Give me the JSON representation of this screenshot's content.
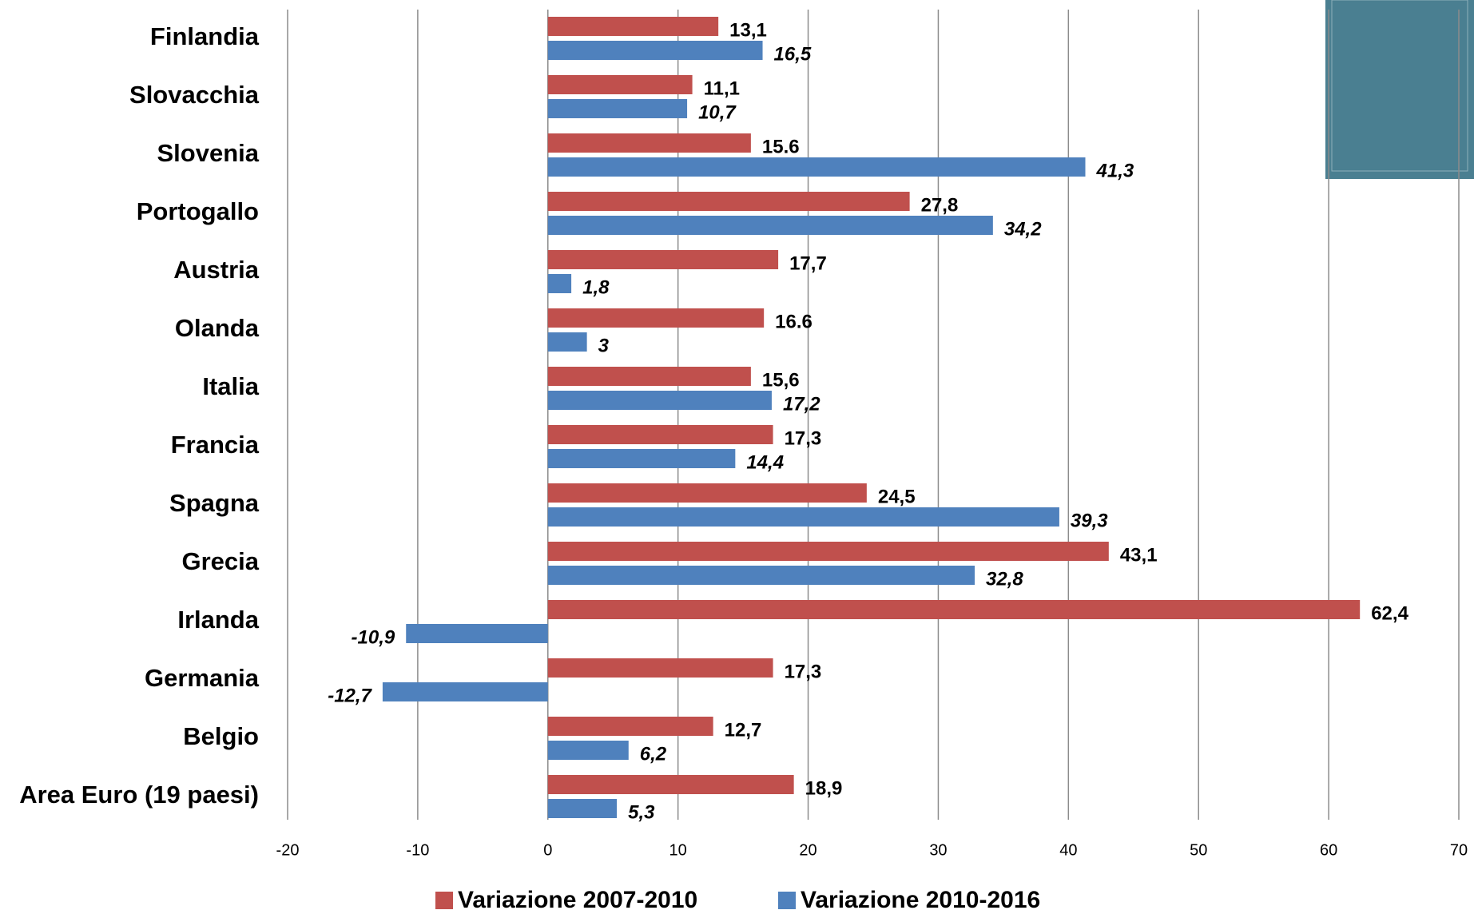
{
  "chart_data": {
    "type": "bar",
    "orientation": "horizontal",
    "categories": [
      "Finlandia",
      "Slovacchia",
      "Slovenia",
      "Portogallo",
      "Austria",
      "Olanda",
      "Italia",
      "Francia",
      "Spagna",
      "Grecia",
      "Irlanda",
      "Germania",
      "Belgio",
      "Area Euro (19 paesi)"
    ],
    "series": [
      {
        "name": "Variazione 2007-2010",
        "color": "#c0504d",
        "values": [
          13.1,
          11.1,
          15.6,
          27.8,
          17.7,
          16.6,
          15.6,
          17.3,
          24.5,
          43.1,
          62.4,
          17.3,
          12.7,
          18.9
        ],
        "value_labels": [
          "13,1",
          "11,1",
          "15.6",
          "27,8",
          "17,7",
          "16.6",
          "15,6",
          "17,3",
          "24,5",
          "43,1",
          "62,4",
          "17,3",
          "12,7",
          "18,9"
        ]
      },
      {
        "name": "Variazione 2010-2016",
        "color": "#4f81bd",
        "values": [
          16.5,
          10.7,
          41.3,
          34.2,
          1.8,
          3,
          17.2,
          14.4,
          39.3,
          32.8,
          -10.9,
          -12.7,
          6.2,
          5.3
        ],
        "value_labels": [
          "16,5",
          "10,7",
          "41,3",
          "34,2",
          "1,8",
          "3",
          "17,2",
          "14,4",
          "39,3",
          "32,8",
          "-10,9",
          "-12,7",
          "6,2",
          "5,3"
        ]
      }
    ],
    "xlim": [
      -20,
      70
    ],
    "xticks": [
      -20,
      -10,
      0,
      10,
      20,
      30,
      40,
      50,
      60,
      70
    ],
    "grid": true,
    "legend": "bottom"
  }
}
